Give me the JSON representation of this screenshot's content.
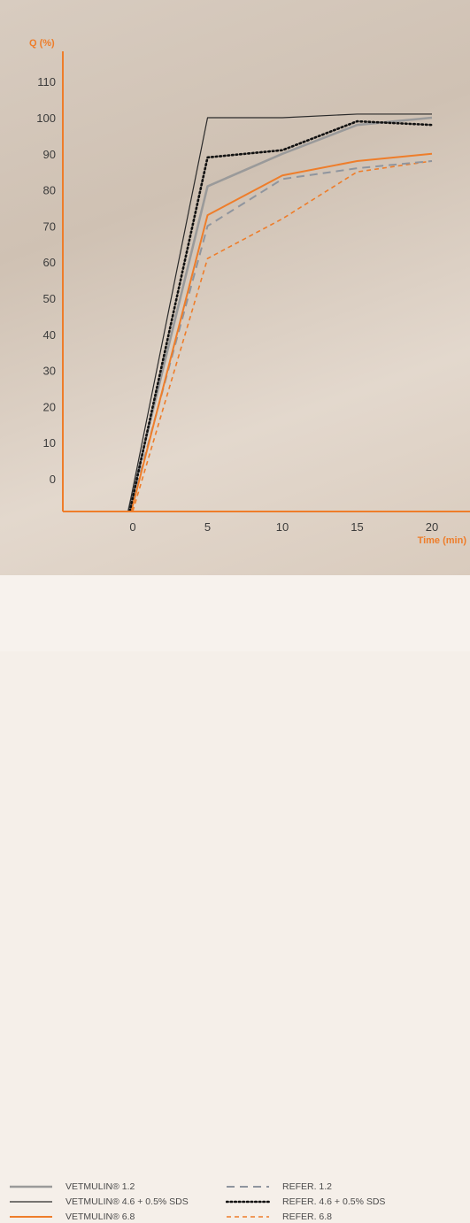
{
  "chart_data": {
    "type": "line",
    "ylabel": "Q (%)",
    "xlabel": "Time (min)",
    "x_ticks": [
      0,
      5,
      10,
      15,
      20
    ],
    "y_ticks": [
      0,
      10,
      20,
      30,
      40,
      50,
      60,
      70,
      80,
      90,
      100,
      110
    ],
    "xlim": [
      -5,
      20.7
    ],
    "ylim": [
      -9,
      119
    ],
    "grid": false,
    "legend_position": "bottom",
    "series": [
      {
        "name": "VETMULIN® 1.2",
        "color": "#9a9a9a",
        "style": "solid",
        "width": 2.6,
        "points": [
          [
            -0.3,
            -9
          ],
          [
            5,
            81
          ],
          [
            10,
            90
          ],
          [
            15,
            98
          ],
          [
            20,
            100
          ]
        ]
      },
      {
        "name": "VETMULIN® 4.6 + 0.5% SDS",
        "color": "#2a2a2a",
        "style": "solid",
        "width": 1.2,
        "points": [
          [
            -0.3,
            -9
          ],
          [
            5,
            100
          ],
          [
            10,
            100
          ],
          [
            15,
            101
          ],
          [
            20,
            101
          ]
        ]
      },
      {
        "name": "VETMULIN® 6.8",
        "color": "#ee7d2a",
        "style": "solid",
        "width": 2,
        "points": [
          [
            -0.1,
            -9
          ],
          [
            5,
            73
          ],
          [
            10,
            84
          ],
          [
            15,
            88
          ],
          [
            20,
            90
          ]
        ]
      },
      {
        "name": "REFER. 1.2",
        "color": "#8f959e",
        "style": "dashed",
        "width": 2,
        "points": [
          [
            -0.2,
            -9
          ],
          [
            5,
            70
          ],
          [
            10,
            83
          ],
          [
            15,
            86
          ],
          [
            20,
            88
          ]
        ]
      },
      {
        "name": "REFER. 4.6 + 0.5% SDS",
        "color": "#111111",
        "style": "dotted",
        "width": 2.6,
        "points": [
          [
            -0.2,
            -9
          ],
          [
            5,
            89
          ],
          [
            10,
            91
          ],
          [
            15,
            99
          ],
          [
            20,
            98
          ]
        ]
      },
      {
        "name": "REFER. 6.8",
        "color": "#ee7d2a",
        "style": "dashed",
        "width": 1.6,
        "points": [
          [
            0,
            -9
          ],
          [
            5,
            61
          ],
          [
            10,
            72
          ],
          [
            15,
            85
          ],
          [
            20,
            88
          ]
        ]
      }
    ]
  },
  "legend": {
    "items": [
      {
        "label": "VETMULIN® 1.2",
        "series": 0
      },
      {
        "label": "VETMULIN® 4.6 + 0.5% SDS",
        "series": 1
      },
      {
        "label": "VETMULIN® 6.8",
        "series": 2
      },
      {
        "label": "REFER. 1.2",
        "series": 3
      },
      {
        "label": "REFER. 4.6 + 0.5% SDS",
        "series": 4
      },
      {
        "label": "REFER. 6.8",
        "series": 5
      }
    ]
  },
  "colors": {
    "axis": "#ee7d2a",
    "ylabel": "#ee7d2a",
    "xlabel": "#ee7d2a",
    "tick_text": "#3c3c3c"
  }
}
